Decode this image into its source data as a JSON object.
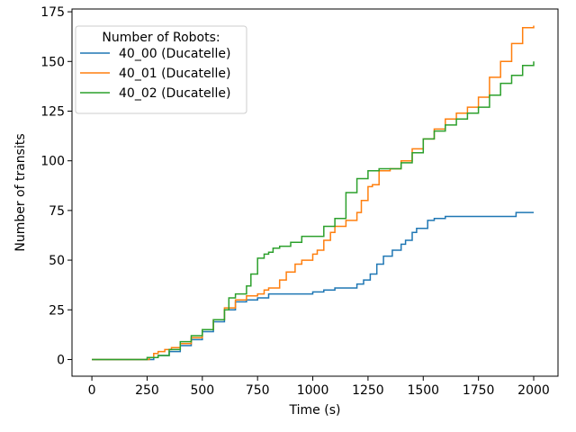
{
  "chart_data": {
    "type": "line",
    "title": "",
    "xlabel": "Time (s)",
    "ylabel": "Number of transits",
    "xlim": [
      -90,
      2110
    ],
    "ylim": [
      -8.4,
      176.4
    ],
    "xticks": [
      0,
      250,
      500,
      750,
      1000,
      1250,
      1500,
      1750,
      2000
    ],
    "yticks": [
      0,
      25,
      50,
      75,
      100,
      125,
      150,
      175
    ],
    "grid": false,
    "legend": {
      "title": "Number of Robots:",
      "placement": "top-left"
    },
    "series": [
      {
        "name": "40_00 (Ducatelle)",
        "color": "#1f77b4",
        "x": [
          0,
          280,
          300,
          350,
          400,
          450,
          500,
          550,
          600,
          650,
          700,
          750,
          800,
          900,
          1000,
          1050,
          1100,
          1150,
          1200,
          1230,
          1260,
          1290,
          1320,
          1360,
          1400,
          1420,
          1450,
          1470,
          1500,
          1520,
          1550,
          1600,
          1700,
          1800,
          1900,
          1920,
          2000
        ],
        "y": [
          0,
          1,
          2,
          4,
          7,
          10,
          14,
          19,
          25,
          29,
          30,
          31,
          33,
          33,
          34,
          35,
          36,
          36,
          38,
          40,
          43,
          48,
          52,
          55,
          58,
          60,
          64,
          66,
          66,
          70,
          71,
          72,
          72,
          72,
          72,
          74,
          74
        ]
      },
      {
        "name": "40_01 (Ducatelle)",
        "color": "#ff7f0e",
        "x": [
          0,
          260,
          280,
          300,
          330,
          360,
          400,
          450,
          500,
          550,
          600,
          650,
          700,
          750,
          780,
          800,
          850,
          880,
          920,
          950,
          1000,
          1020,
          1050,
          1080,
          1100,
          1150,
          1200,
          1220,
          1250,
          1270,
          1300,
          1350,
          1400,
          1450,
          1500,
          1550,
          1600,
          1650,
          1700,
          1750,
          1800,
          1850,
          1900,
          1950,
          2000
        ],
        "y": [
          0,
          1,
          3,
          4,
          5,
          6,
          8,
          11,
          15,
          20,
          26,
          30,
          32,
          33,
          35,
          36,
          40,
          44,
          48,
          50,
          53,
          55,
          60,
          64,
          67,
          70,
          74,
          80,
          87,
          88,
          95,
          96,
          100,
          106,
          111,
          116,
          121,
          124,
          127,
          132,
          142,
          150,
          159,
          167,
          168
        ]
      },
      {
        "name": "40_02 (Ducatelle)",
        "color": "#2ca02c",
        "x": [
          0,
          250,
          300,
          350,
          400,
          450,
          500,
          550,
          600,
          620,
          650,
          700,
          720,
          750,
          780,
          800,
          820,
          850,
          900,
          950,
          1000,
          1050,
          1100,
          1150,
          1200,
          1250,
          1300,
          1350,
          1400,
          1450,
          1500,
          1550,
          1600,
          1650,
          1700,
          1750,
          1800,
          1850,
          1900,
          1950,
          2000
        ],
        "y": [
          0,
          1,
          2,
          5,
          9,
          12,
          15,
          20,
          25,
          31,
          33,
          37,
          43,
          51,
          53,
          54,
          56,
          57,
          59,
          62,
          62,
          67,
          71,
          84,
          91,
          95,
          96,
          96,
          99,
          104,
          111,
          115,
          118,
          121,
          124,
          127,
          133,
          139,
          143,
          148,
          150
        ]
      }
    ]
  }
}
